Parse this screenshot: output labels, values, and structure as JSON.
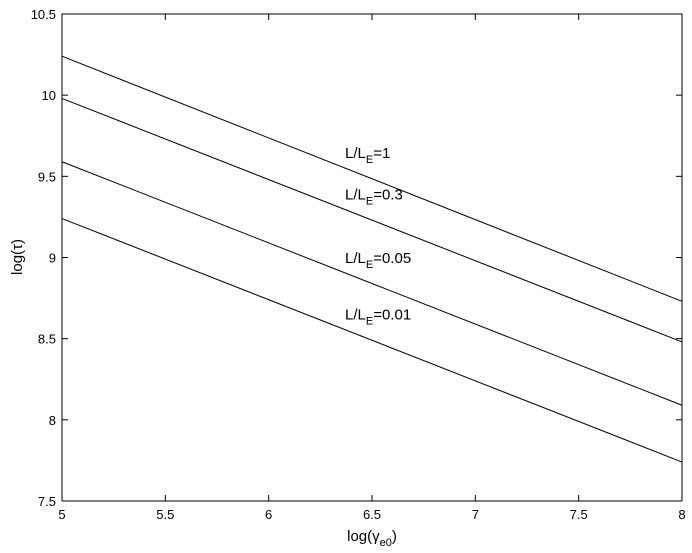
{
  "chart_data": {
    "type": "line",
    "x_label": [
      "log(γ",
      "e0",
      ")"
    ],
    "y_label": "log(τ)",
    "x": [
      5,
      8
    ],
    "series": [
      {
        "label": [
          "L/L",
          "E",
          "=1"
        ],
        "color": "#000000",
        "values": [
          10.24,
          8.73
        ]
      },
      {
        "label": [
          "L/L",
          "E",
          "=0.3"
        ],
        "color": "#000000",
        "values": [
          9.98,
          8.48
        ]
      },
      {
        "label": [
          "L/L",
          "E",
          "=0.05"
        ],
        "color": "#000000",
        "values": [
          9.59,
          8.09
        ]
      },
      {
        "label": [
          "L/L",
          "E",
          "=0.01"
        ],
        "color": "#000000",
        "values": [
          9.24,
          7.74
        ]
      }
    ],
    "xlim": [
      5,
      8
    ],
    "ylim": [
      7.5,
      10.5
    ],
    "xticks": [
      5,
      5.5,
      6,
      6.5,
      7,
      7.5,
      8
    ],
    "yticks": [
      7.5,
      8,
      8.5,
      9,
      9.5,
      10,
      10.5
    ],
    "grid": false
  }
}
